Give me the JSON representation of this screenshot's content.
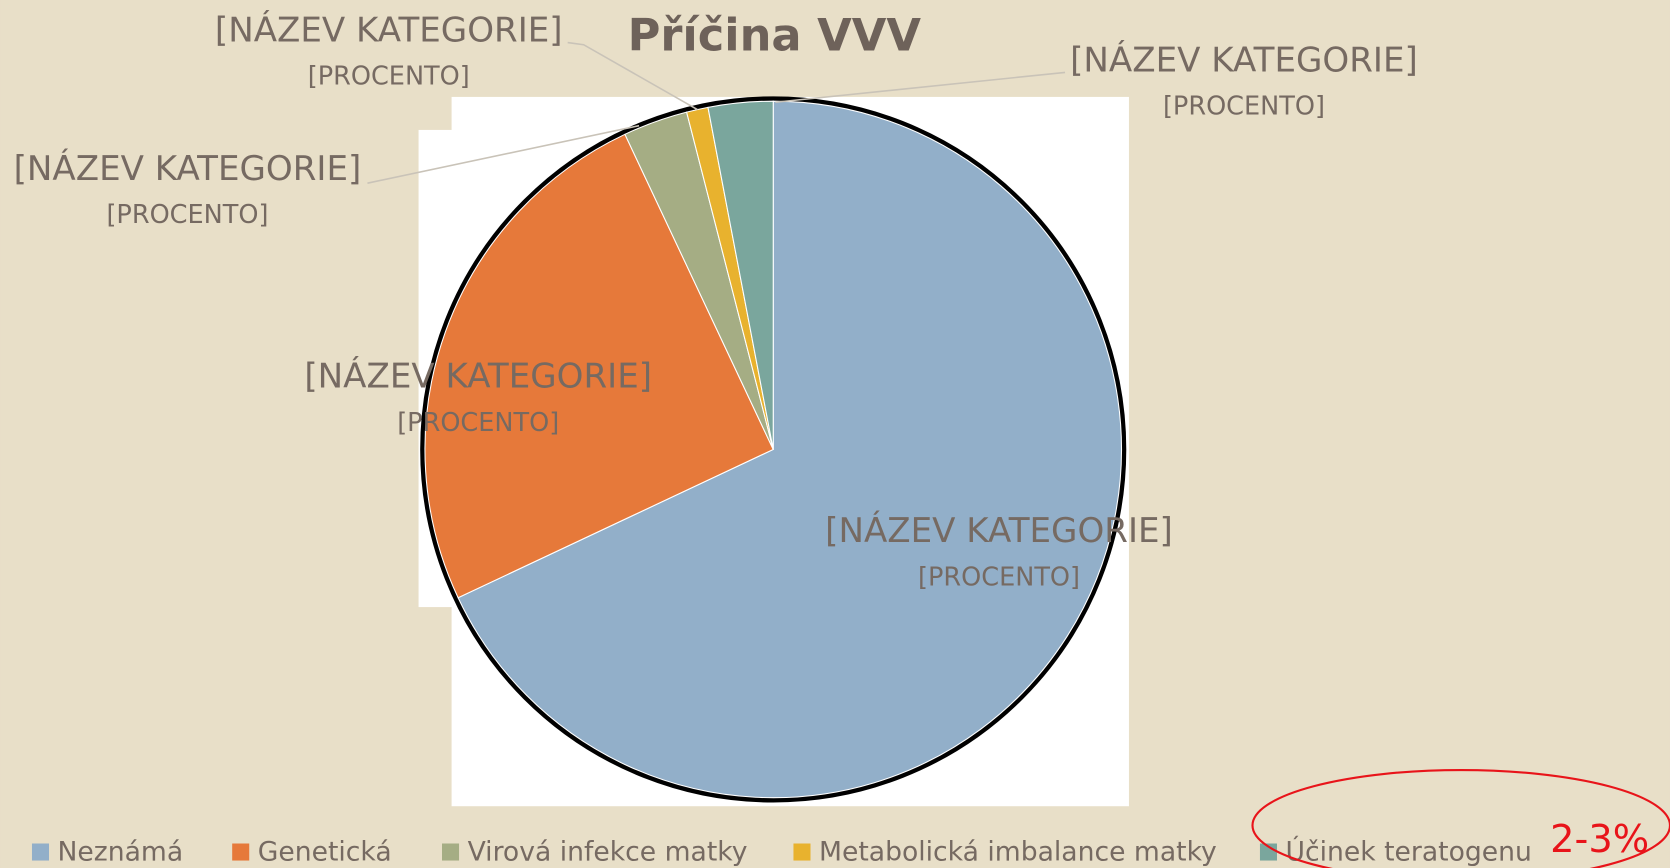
{
  "chart_data": {
    "type": "pie",
    "title": "Příčina VVV",
    "categories": [
      "Neznámá",
      "Genetická",
      "Virová infekce matky",
      "Metabolická imbalance matky",
      "Účinek teratogenu"
    ],
    "values": [
      68,
      25,
      3,
      1,
      3
    ],
    "colors": [
      "#92afc9",
      "#e6793a",
      "#a5ad84",
      "#e8b22e",
      "#7aa69d"
    ],
    "data_labels": [
      {
        "name": "[NÁZEV KATEGORIE]",
        "value": "[PROCENTO]"
      },
      {
        "name": "[NÁZEV KATEGORIE]",
        "value": "[PROCENTO]"
      },
      {
        "name": "[NÁZEV KATEGORIE]",
        "value": "[PROCENTO]"
      },
      {
        "name": "[NÁZEV KATEGORIE]",
        "value": "[PROCENTO]"
      },
      {
        "name": "[NÁZEV KATEGORIE]",
        "value": "[PROCENTO]"
      }
    ],
    "legend": "bottom",
    "annotation": "2-3%"
  }
}
